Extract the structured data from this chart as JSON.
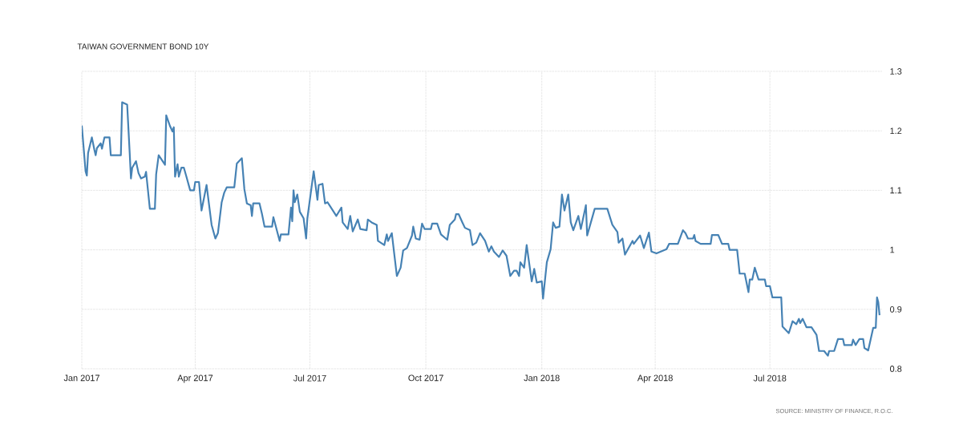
{
  "chart_data": {
    "type": "line",
    "title": "TAIWAN GOVERNMENT BOND 10Y",
    "annotations": [
      "SOURCE: MINISTRY OF FINANCE, R.O.C."
    ],
    "xlim": [
      "2017-01-01",
      "2018-09-28"
    ],
    "xticks": [
      {
        "value": "2017-01-01",
        "label": "Jan 2017"
      },
      {
        "value": "2017-04-01",
        "label": "Apr 2017"
      },
      {
        "value": "2017-07-01",
        "label": "Jul 2017"
      },
      {
        "value": "2017-10-01",
        "label": "Oct 2017"
      },
      {
        "value": "2018-01-01",
        "label": "Jan 2018"
      },
      {
        "value": "2018-04-01",
        "label": "Apr 2018"
      },
      {
        "value": "2018-07-01",
        "label": "Jul 2018"
      }
    ],
    "ylim": [
      0.8,
      1.3
    ],
    "yticks": [
      0.8,
      0.9,
      1,
      1.1,
      1.2,
      1.3
    ],
    "grid": true,
    "x": [
      "2017-01-01",
      "2017-01-04",
      "2017-01-05",
      "2017-01-06",
      "2017-01-09",
      "2017-01-11",
      "2017-01-12",
      "2017-01-13",
      "2017-01-16",
      "2017-01-17",
      "2017-01-19",
      "2017-01-23",
      "2017-01-24",
      "2017-02-01",
      "2017-02-02",
      "2017-02-06",
      "2017-02-08",
      "2017-02-09",
      "2017-02-10",
      "2017-02-13",
      "2017-02-15",
      "2017-02-17",
      "2017-02-20",
      "2017-02-21",
      "2017-02-24",
      "2017-02-28",
      "2017-03-01",
      "2017-03-03",
      "2017-03-08",
      "2017-03-09",
      "2017-03-12",
      "2017-03-14",
      "2017-03-15",
      "2017-03-16",
      "2017-03-18",
      "2017-03-19",
      "2017-03-21",
      "2017-03-23",
      "2017-03-25",
      "2017-03-28",
      "2017-03-31",
      "2017-04-01",
      "2017-04-04",
      "2017-04-06",
      "2017-04-10",
      "2017-04-14",
      "2017-04-17",
      "2017-04-19",
      "2017-04-22",
      "2017-04-24",
      "2017-04-26",
      "2017-04-29",
      "2017-05-02",
      "2017-05-04",
      "2017-05-08",
      "2017-05-10",
      "2017-05-12",
      "2017-05-15",
      "2017-05-16",
      "2017-05-17",
      "2017-05-22",
      "2017-05-24",
      "2017-05-26",
      "2017-06-01",
      "2017-06-02",
      "2017-06-07",
      "2017-06-08",
      "2017-06-09",
      "2017-06-14",
      "2017-06-16",
      "2017-06-17",
      "2017-06-18",
      "2017-06-19",
      "2017-06-21",
      "2017-06-23",
      "2017-06-26",
      "2017-06-28",
      "2017-06-29",
      "2017-07-04",
      "2017-07-07",
      "2017-07-08",
      "2017-07-11",
      "2017-07-13",
      "2017-07-15",
      "2017-07-22",
      "2017-07-26",
      "2017-07-27",
      "2017-07-31",
      "2017-08-02",
      "2017-08-04",
      "2017-08-08",
      "2017-08-10",
      "2017-08-15",
      "2017-08-16",
      "2017-08-19",
      "2017-08-23",
      "2017-08-24",
      "2017-08-29",
      "2017-08-31",
      "2017-09-01",
      "2017-09-04",
      "2017-09-06",
      "2017-09-08",
      "2017-09-11",
      "2017-09-13",
      "2017-09-16",
      "2017-09-20",
      "2017-09-21",
      "2017-09-23",
      "2017-09-26",
      "2017-09-28",
      "2017-09-30",
      "2017-10-05",
      "2017-10-06",
      "2017-10-10",
      "2017-10-13",
      "2017-10-18",
      "2017-10-20",
      "2017-10-24",
      "2017-10-25",
      "2017-10-27",
      "2017-10-30",
      "2017-11-01",
      "2017-11-05",
      "2017-11-07",
      "2017-11-10",
      "2017-11-13",
      "2017-11-17",
      "2017-11-20",
      "2017-11-22",
      "2017-11-24",
      "2017-11-28",
      "2017-12-01",
      "2017-12-04",
      "2017-12-07",
      "2017-12-10",
      "2017-12-12",
      "2017-12-14",
      "2017-12-15",
      "2017-12-18",
      "2017-12-20",
      "2017-12-24",
      "2017-12-26",
      "2017-12-28",
      "2018-01-01",
      "2018-01-02",
      "2018-01-05",
      "2018-01-08",
      "2018-01-10",
      "2018-01-12",
      "2018-01-15",
      "2018-01-17",
      "2018-01-19",
      "2018-01-22",
      "2018-01-24",
      "2018-01-26",
      "2018-01-30",
      "2018-02-01",
      "2018-02-05",
      "2018-02-06",
      "2018-02-12",
      "2018-02-22",
      "2018-02-26",
      "2018-03-02",
      "2018-03-03",
      "2018-03-06",
      "2018-03-08",
      "2018-03-14",
      "2018-03-15",
      "2018-03-20",
      "2018-03-23",
      "2018-03-27",
      "2018-03-29",
      "2018-04-02",
      "2018-04-10",
      "2018-04-12",
      "2018-04-19",
      "2018-04-23",
      "2018-04-25",
      "2018-04-27",
      "2018-05-01",
      "2018-05-02",
      "2018-05-03",
      "2018-05-07",
      "2018-05-15",
      "2018-05-16",
      "2018-05-21",
      "2018-05-24",
      "2018-05-29",
      "2018-05-30",
      "2018-06-05",
      "2018-06-07",
      "2018-06-11",
      "2018-06-14",
      "2018-06-15",
      "2018-06-17",
      "2018-06-19",
      "2018-06-22",
      "2018-06-27",
      "2018-06-28",
      "2018-07-01",
      "2018-07-03",
      "2018-07-10",
      "2018-07-11",
      "2018-07-16",
      "2018-07-19",
      "2018-07-22",
      "2018-07-24",
      "2018-07-25",
      "2018-07-27",
      "2018-07-30",
      "2018-08-03",
      "2018-08-07",
      "2018-08-09",
      "2018-08-13",
      "2018-08-16",
      "2018-08-17",
      "2018-08-21",
      "2018-08-24",
      "2018-08-28",
      "2018-08-29",
      "2018-09-04",
      "2018-09-05",
      "2018-09-07",
      "2018-09-10",
      "2018-09-13",
      "2018-09-14",
      "2018-09-17",
      "2018-09-21",
      "2018-09-23",
      "2018-09-24",
      "2018-09-25",
      "2018-09-26"
    ],
    "series": [
      {
        "color": "#4682b4",
        "values": [
          1.209,
          1.132,
          1.125,
          1.163,
          1.189,
          1.168,
          1.159,
          1.171,
          1.179,
          1.17,
          1.189,
          1.189,
          1.159,
          1.159,
          1.248,
          1.244,
          1.163,
          1.12,
          1.138,
          1.149,
          1.129,
          1.12,
          1.123,
          1.131,
          1.069,
          1.069,
          1.127,
          1.159,
          1.143,
          1.226,
          1.208,
          1.199,
          1.206,
          1.123,
          1.144,
          1.123,
          1.138,
          1.138,
          1.123,
          1.1,
          1.1,
          1.114,
          1.114,
          1.066,
          1.109,
          1.042,
          1.019,
          1.028,
          1.08,
          1.096,
          1.105,
          1.105,
          1.105,
          1.145,
          1.154,
          1.102,
          1.078,
          1.075,
          1.057,
          1.078,
          1.078,
          1.06,
          1.039,
          1.039,
          1.055,
          1.015,
          1.026,
          1.026,
          1.026,
          1.071,
          1.048,
          1.1,
          1.08,
          1.093,
          1.064,
          1.053,
          1.019,
          1.053,
          1.132,
          1.084,
          1.109,
          1.111,
          1.078,
          1.08,
          1.057,
          1.071,
          1.046,
          1.035,
          1.057,
          1.031,
          1.051,
          1.035,
          1.033,
          1.051,
          1.046,
          1.042,
          1.015,
          1.008,
          1.026,
          1.015,
          1.028,
          0.992,
          0.956,
          0.97,
          0.999,
          1.003,
          1.024,
          1.039,
          1.019,
          1.017,
          1.044,
          1.035,
          1.035,
          1.044,
          1.044,
          1.026,
          1.017,
          1.042,
          1.051,
          1.06,
          1.06,
          1.046,
          1.037,
          1.033,
          1.008,
          1.012,
          1.028,
          1.015,
          0.997,
          1.006,
          0.997,
          0.988,
          0.999,
          0.99,
          0.956,
          0.965,
          0.965,
          0.956,
          0.979,
          0.97,
          1.008,
          0.947,
          0.968,
          0.945,
          0.947,
          0.918,
          0.979,
          1.001,
          1.046,
          1.037,
          1.039,
          1.093,
          1.066,
          1.093,
          1.046,
          1.033,
          1.057,
          1.035,
          1.075,
          1.024,
          1.069,
          1.069,
          1.042,
          1.03,
          1.012,
          1.019,
          0.992,
          1.015,
          1.01,
          1.024,
          1.003,
          1.029,
          0.997,
          0.994,
          1.001,
          1.01,
          1.01,
          1.033,
          1.028,
          1.019,
          1.019,
          1.025,
          1.015,
          1.01,
          1.01,
          1.025,
          1.025,
          1.01,
          1.01,
          1.0,
          1.0,
          0.96,
          0.96,
          0.929,
          0.95,
          0.95,
          0.97,
          0.95,
          0.95,
          0.939,
          0.939,
          0.92,
          0.92,
          0.871,
          0.86,
          0.88,
          0.875,
          0.884,
          0.877,
          0.884,
          0.87,
          0.87,
          0.857,
          0.83,
          0.83,
          0.822,
          0.83,
          0.83,
          0.85,
          0.85,
          0.84,
          0.84,
          0.849,
          0.84,
          0.85,
          0.85,
          0.835,
          0.831,
          0.869,
          0.869,
          0.92,
          0.912,
          0.89
        ]
      }
    ]
  }
}
